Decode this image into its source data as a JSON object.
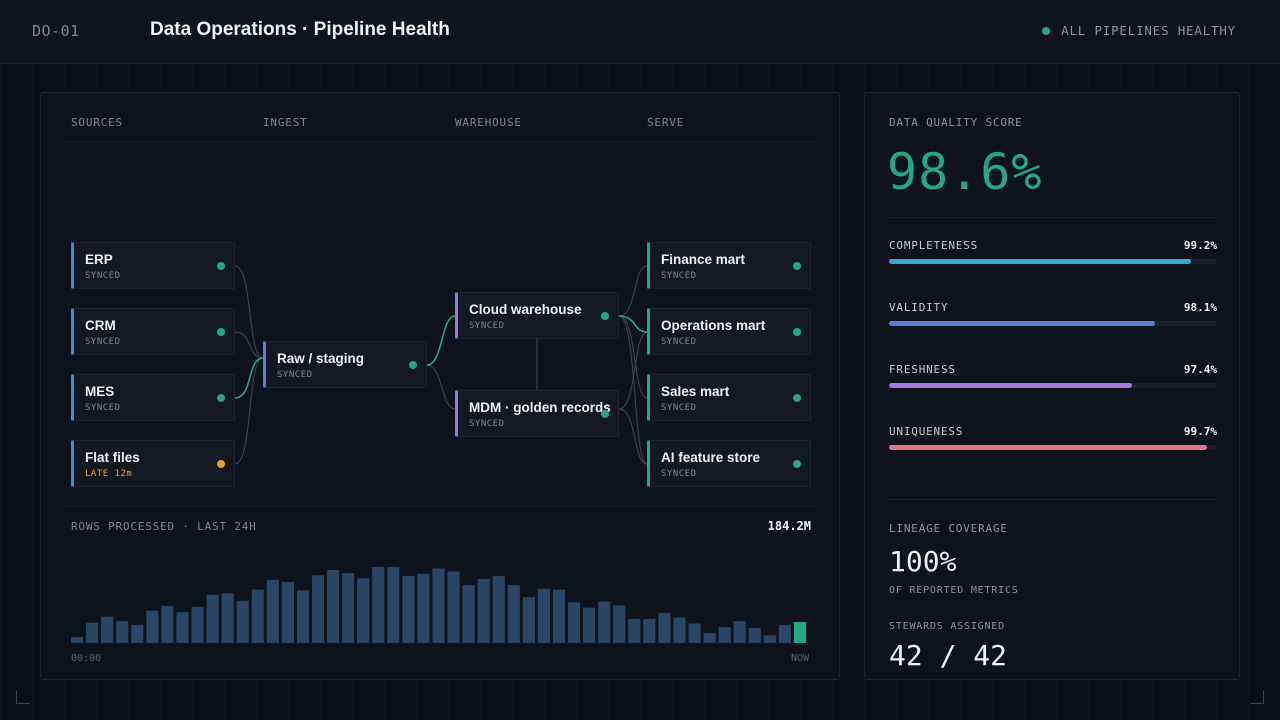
{
  "header": {
    "code": "DO-01",
    "title": "Data Operations · Pipeline Health",
    "status": "ALL PIPELINES HEALTHY",
    "status_color": "#22a884"
  },
  "pipeline": {
    "columns": [
      "SOURCES",
      "INGEST",
      "WAREHOUSE",
      "SERVE"
    ],
    "sources": [
      {
        "name": "ERP",
        "status": "SYNCED"
      },
      {
        "name": "CRM",
        "status": "SYNCED"
      },
      {
        "name": "MES",
        "status": "SYNCED"
      },
      {
        "name": "Flat files",
        "status": "LATE 12m"
      }
    ],
    "ingest": [
      {
        "name": "Raw / staging",
        "status": "SYNCED"
      }
    ],
    "warehouse": [
      {
        "name": "Cloud warehouse",
        "status": "SYNCED"
      },
      {
        "name": "MDM · golden records",
        "status": "SYNCED"
      }
    ],
    "serve": [
      {
        "name": "Finance mart",
        "status": "SYNCED"
      },
      {
        "name": "Operations mart",
        "status": "SYNCED"
      },
      {
        "name": "Sales mart",
        "status": "SYNCED"
      },
      {
        "name": "AI feature store",
        "status": "SYNCED"
      }
    ]
  },
  "rows_chart": {
    "label": "ROWS PROCESSED · LAST 24H",
    "total": "184.2M",
    "x_start": "00:00",
    "x_end": "NOW",
    "chart_data": {
      "type": "bar",
      "values": [
        8,
        27,
        35,
        29,
        24,
        43,
        49,
        41,
        48,
        64,
        66,
        56,
        71,
        84,
        81,
        70,
        90,
        97,
        93,
        86,
        101,
        101,
        89,
        92,
        99,
        95,
        77,
        85,
        89,
        77,
        61,
        72,
        71,
        54,
        47,
        55,
        50,
        32,
        32,
        40,
        34,
        26,
        13,
        21,
        29,
        20,
        10,
        24,
        28
      ],
      "bar_color": "#2a4666",
      "highlight_color": "#22a884"
    }
  },
  "quality": {
    "title": "DATA QUALITY SCORE",
    "score": "98.6%",
    "metrics": [
      {
        "name": "COMPLETENESS",
        "value": "99.2%",
        "fill": 0.92,
        "color": "#3aa6cf"
      },
      {
        "name": "VALIDITY",
        "value": "98.1%",
        "fill": 0.81,
        "color": "#5b7fd6"
      },
      {
        "name": "FRESHNESS",
        "value": "97.4%",
        "fill": 0.74,
        "color": "#a07ae0"
      },
      {
        "name": "UNIQUENESS",
        "value": "99.7%",
        "fill": 0.97,
        "color": "#e07686"
      }
    ],
    "lineage_title": "LINEAGE COVERAGE",
    "lineage_value": "100%",
    "lineage_sub": "OF REPORTED METRICS",
    "stewards_title": "STEWARDS ASSIGNED",
    "stewards_value": "42 / 42"
  }
}
